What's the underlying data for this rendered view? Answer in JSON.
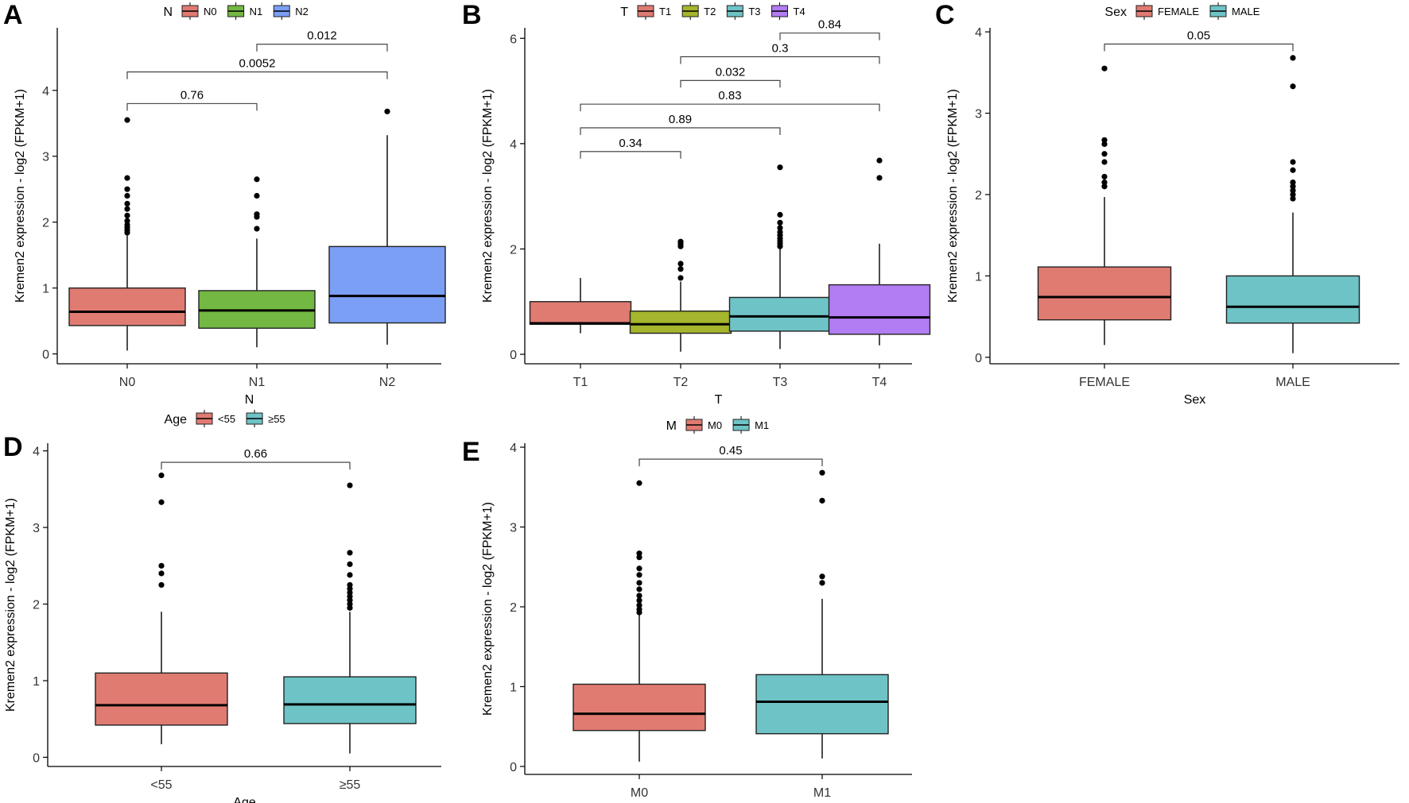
{
  "figure": {
    "panels": [
      "A",
      "B",
      "C",
      "D",
      "E"
    ]
  },
  "chart_data": [
    {
      "type": "box",
      "panel": "A",
      "legend_title": "N",
      "categories": [
        "N0",
        "N1",
        "N2"
      ],
      "colors": [
        "#E07B72",
        "#72B843",
        "#7B9FF5"
      ],
      "xlabel": "N",
      "ylabel": "Kremen2 expression - log2 (FPKM+1)",
      "ylim": [
        -0.15,
        4.95
      ],
      "yticks": [
        0,
        1,
        2,
        3,
        4
      ],
      "boxes": [
        {
          "lower": 0.05,
          "q1": 0.43,
          "median": 0.64,
          "q3": 1.0,
          "upper": 1.8,
          "outliers": [
            1.84,
            1.88,
            1.92,
            1.96,
            2.02,
            2.1,
            2.2,
            2.28,
            2.4,
            2.5,
            2.67,
            3.55
          ]
        },
        {
          "lower": 0.1,
          "q1": 0.39,
          "median": 0.66,
          "q3": 0.96,
          "upper": 1.75,
          "outliers": [
            1.9,
            2.08,
            2.12,
            2.4,
            2.65
          ]
        },
        {
          "lower": 0.14,
          "q1": 0.47,
          "median": 0.88,
          "q3": 1.63,
          "upper": 3.32,
          "outliers": [
            3.68
          ]
        }
      ],
      "comparisons": [
        {
          "from": 0,
          "to": 1,
          "label": "0.76",
          "y": 3.8
        },
        {
          "from": 0,
          "to": 2,
          "label": "0.0052",
          "y": 4.28
        },
        {
          "from": 1,
          "to": 2,
          "label": "0.012",
          "y": 4.7
        }
      ]
    },
    {
      "type": "box",
      "panel": "B",
      "legend_title": "T",
      "categories": [
        "T1",
        "T2",
        "T3",
        "T4"
      ],
      "colors": [
        "#E07B72",
        "#A5B52C",
        "#6EC3C6",
        "#B27CF2"
      ],
      "xlabel": "T",
      "ylabel": "Kremen2 expression - log2 (FPKM+1)",
      "ylim": [
        -0.18,
        6.2
      ],
      "yticks": [
        0,
        2,
        4,
        6
      ],
      "boxes": [
        {
          "lower": 0.4,
          "q1": 0.57,
          "median": 0.59,
          "q3": 1.0,
          "upper": 1.45,
          "outliers": []
        },
        {
          "lower": 0.05,
          "q1": 0.4,
          "median": 0.57,
          "q3": 0.82,
          "upper": 1.38,
          "outliers": [
            1.45,
            1.62,
            1.72,
            2.05,
            2.1,
            2.14
          ]
        },
        {
          "lower": 0.1,
          "q1": 0.44,
          "median": 0.72,
          "q3": 1.08,
          "upper": 2.0,
          "outliers": [
            2.05,
            2.1,
            2.15,
            2.2,
            2.26,
            2.32,
            2.4,
            2.5,
            2.65,
            3.55
          ]
        },
        {
          "lower": 0.17,
          "q1": 0.38,
          "median": 0.7,
          "q3": 1.32,
          "upper": 2.1,
          "outliers": [
            3.35,
            3.68
          ]
        }
      ],
      "comparisons": [
        {
          "from": 0,
          "to": 1,
          "label": "0.34",
          "y": 3.85
        },
        {
          "from": 0,
          "to": 2,
          "label": "0.89",
          "y": 4.3
        },
        {
          "from": 0,
          "to": 3,
          "label": "0.83",
          "y": 4.75
        },
        {
          "from": 1,
          "to": 2,
          "label": "0.032",
          "y": 5.2
        },
        {
          "from": 1,
          "to": 3,
          "label": "0.3",
          "y": 5.65
        },
        {
          "from": 2,
          "to": 3,
          "label": "0.84",
          "y": 6.1
        }
      ]
    },
    {
      "type": "box",
      "panel": "C",
      "legend_title": "Sex",
      "categories": [
        "FEMALE",
        "MALE"
      ],
      "colors": [
        "#E07B72",
        "#6EC3C6"
      ],
      "xlabel": "Sex",
      "ylabel": "Kremen2 expression - log2 (FPKM+1)",
      "ylim": [
        -0.08,
        4.05
      ],
      "yticks": [
        0,
        1,
        2,
        3,
        4
      ],
      "boxes": [
        {
          "lower": 0.15,
          "q1": 0.46,
          "median": 0.74,
          "q3": 1.11,
          "upper": 1.97,
          "outliers": [
            2.1,
            2.15,
            2.22,
            2.4,
            2.5,
            2.62,
            2.67,
            3.55
          ]
        },
        {
          "lower": 0.05,
          "q1": 0.42,
          "median": 0.62,
          "q3": 1.0,
          "upper": 1.78,
          "outliers": [
            1.95,
            2.0,
            2.05,
            2.1,
            2.15,
            2.3,
            2.4,
            3.33,
            3.68
          ]
        }
      ],
      "comparisons": [
        {
          "from": 0,
          "to": 1,
          "label": "0.05",
          "y": 3.85
        }
      ]
    },
    {
      "type": "box",
      "panel": "D",
      "legend_title": "Age",
      "categories": [
        "<55",
        "≥55"
      ],
      "colors": [
        "#E07B72",
        "#6EC3C6"
      ],
      "xlabel": "Age",
      "ylabel": "Kremen2 expression - log2 (FPKM+1)",
      "ylim": [
        -0.12,
        4.1
      ],
      "yticks": [
        0,
        1,
        2,
        3,
        4
      ],
      "boxes": [
        {
          "lower": 0.17,
          "q1": 0.42,
          "median": 0.68,
          "q3": 1.1,
          "upper": 1.9,
          "outliers": [
            2.25,
            2.4,
            2.5,
            3.33,
            3.68
          ]
        },
        {
          "lower": 0.05,
          "q1": 0.44,
          "median": 0.69,
          "q3": 1.05,
          "upper": 1.9,
          "outliers": [
            1.95,
            2.0,
            2.05,
            2.1,
            2.15,
            2.2,
            2.25,
            2.38,
            2.52,
            2.67,
            3.55
          ]
        }
      ],
      "comparisons": [
        {
          "from": 0,
          "to": 1,
          "label": "0.66",
          "y": 3.85
        }
      ]
    },
    {
      "type": "box",
      "panel": "E",
      "legend_title": "M",
      "categories": [
        "M0",
        "M1"
      ],
      "colors": [
        "#E07B72",
        "#6EC3C6"
      ],
      "xlabel": "M",
      "ylabel": "Kremen2 expression - log2 (FPKM+1)",
      "ylim": [
        -0.1,
        4.05
      ],
      "yticks": [
        0,
        1,
        2,
        3,
        4
      ],
      "boxes": [
        {
          "lower": 0.06,
          "q1": 0.45,
          "median": 0.66,
          "q3": 1.03,
          "upper": 1.9,
          "outliers": [
            1.93,
            1.97,
            2.02,
            2.08,
            2.14,
            2.22,
            2.3,
            2.4,
            2.48,
            2.62,
            2.67,
            3.55
          ]
        },
        {
          "lower": 0.1,
          "q1": 0.41,
          "median": 0.81,
          "q3": 1.15,
          "upper": 2.1,
          "outliers": [
            2.3,
            2.38,
            3.33,
            3.68
          ]
        }
      ],
      "comparisons": [
        {
          "from": 0,
          "to": 1,
          "label": "0.45",
          "y": 3.85
        }
      ]
    }
  ]
}
